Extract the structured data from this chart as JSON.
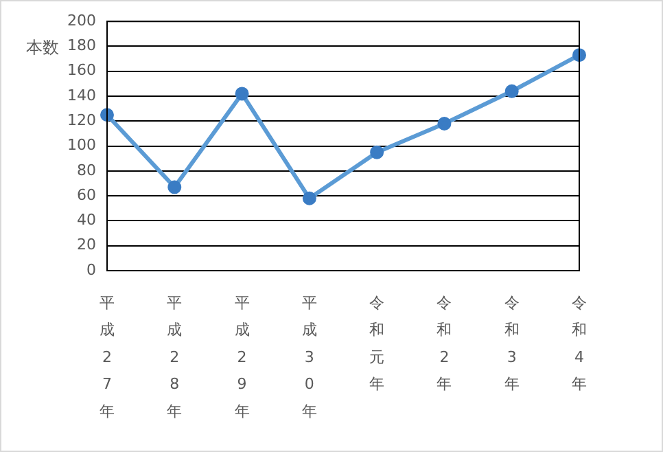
{
  "chart_data": {
    "type": "line",
    "ylabel": "本数",
    "categories": [
      "平成27年",
      "平成28年",
      "平成29年",
      "平成30年",
      "令和元年",
      "令和2年",
      "令和3年",
      "令和4年"
    ],
    "series": [
      {
        "color": "#5b9bd5",
        "values": [
          125,
          67,
          142,
          58,
          95,
          118,
          144,
          173
        ]
      }
    ],
    "ylim": [
      0,
      200
    ],
    "yticks": [
      0,
      20,
      40,
      60,
      80,
      100,
      120,
      140,
      160,
      180,
      200
    ],
    "grid": "y",
    "marker": "circle",
    "line_style": "solid",
    "legend": false
  }
}
